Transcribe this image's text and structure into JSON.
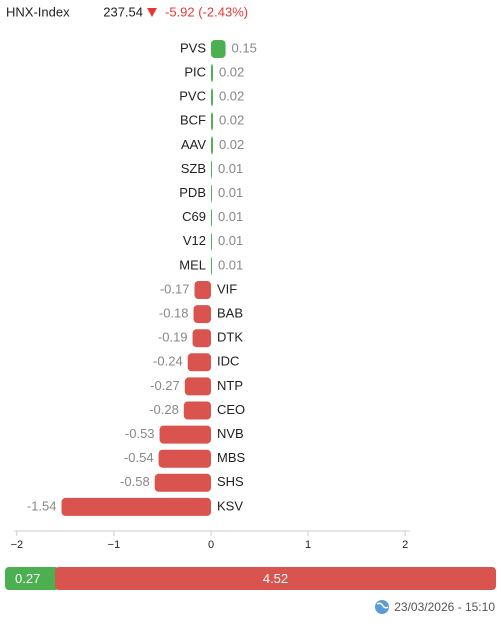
{
  "header": {
    "index_name": "HNX-Index",
    "index_value": "237.54",
    "change": "-5.92 (-2.43%)"
  },
  "chart_data": {
    "type": "bar",
    "orientation": "horizontal",
    "categories": [
      "PVS",
      "PIC",
      "PVC",
      "BCF",
      "AAV",
      "SZB",
      "PDB",
      "C69",
      "V12",
      "MEL",
      "VIF",
      "BAB",
      "DTK",
      "IDC",
      "NTP",
      "CEO",
      "NVB",
      "MBS",
      "SHS",
      "KSV"
    ],
    "values": [
      0.15,
      0.02,
      0.02,
      0.02,
      0.02,
      0.01,
      0.01,
      0.01,
      0.01,
      0.01,
      -0.17,
      -0.18,
      -0.19,
      -0.24,
      -0.27,
      -0.28,
      -0.53,
      -0.54,
      -0.58,
      -1.54
    ],
    "positive_color": "#4caf50",
    "negative_color": "#d9534f",
    "xlim": [
      -2.05,
      2.05
    ],
    "xticks": [
      {
        "value": -2,
        "label": "−2"
      },
      {
        "value": -1,
        "label": "−1"
      },
      0,
      1,
      2
    ]
  },
  "breadth": {
    "values": [
      0.27,
      4.52
    ],
    "colors": [
      "#4caf50",
      "#d9534f"
    ]
  },
  "timestamp": "23/03/2026 - 15:10"
}
